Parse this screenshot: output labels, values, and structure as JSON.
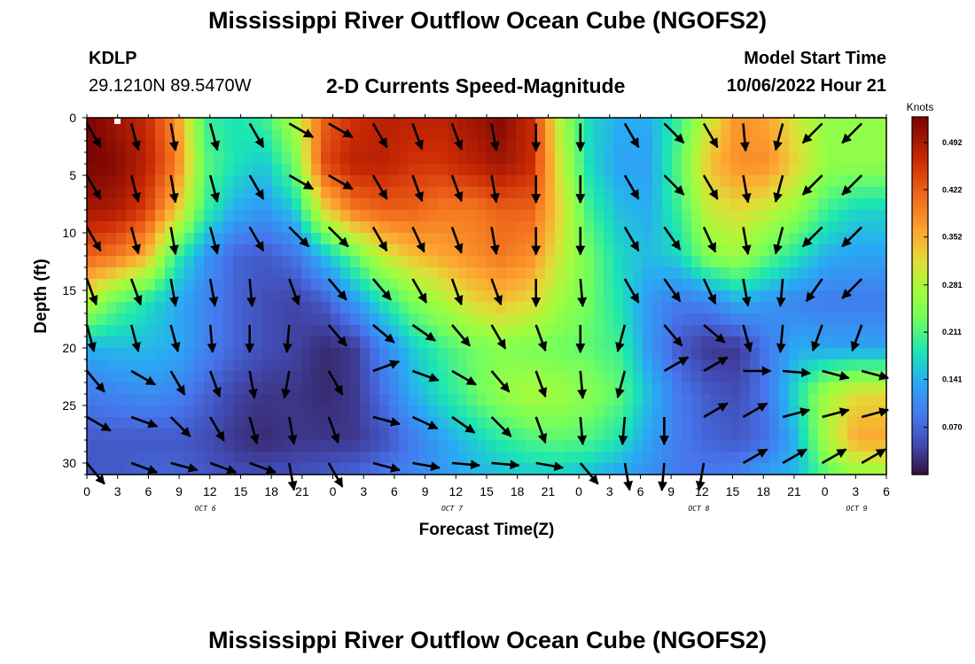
{
  "header": {
    "title_top": "Mississippi River Outflow Ocean Cube (NGOFS2)",
    "title_bottom": "Mississippi River Outflow Ocean Cube (NGOFS2)",
    "station_id": "KDLP",
    "station_coords": "29.1210N  89.5470W",
    "subtitle": "2-D Currents Speed-Magnitude",
    "model_label": "Model Start Time",
    "model_date": "10/06/2022 Hour 21"
  },
  "colors": {
    "arrow": "#000000",
    "axis": "#000000",
    "background": "#ffffff"
  },
  "chart_data": {
    "type": "heatmap",
    "title": "2-D Currents Speed-Magnitude",
    "xlabel": "Forecast Time(Z)",
    "ylabel": "Depth (ft)",
    "x_hours_range": [
      0,
      81
    ],
    "ylim": [
      0,
      31
    ],
    "y_inverted": true,
    "x_tick_labels": [
      "0",
      "3",
      "6",
      "9",
      "12",
      "15",
      "18",
      "21",
      "0",
      "3",
      "6",
      "9",
      "12",
      "15",
      "18",
      "21",
      "0",
      "3",
      "6",
      "9",
      "12",
      "15",
      "18",
      "21",
      "0",
      "3",
      "6"
    ],
    "y_ticks": [
      0,
      5,
      10,
      15,
      20,
      25,
      30
    ],
    "day_labels": [
      {
        "label": "OCT 6",
        "hour": 12
      },
      {
        "label": "OCT 7",
        "hour": 37
      },
      {
        "label": "OCT 8",
        "hour": 62
      },
      {
        "label": "OCT 9",
        "hour": 78
      }
    ],
    "colorbar": {
      "unit": "Knots",
      "range": [
        0.0,
        0.53
      ],
      "ticks": [
        0.07,
        0.141,
        0.211,
        0.281,
        0.352,
        0.422,
        0.492
      ],
      "tick_labels": [
        "0.070",
        "0.141",
        "0.211",
        "0.281",
        "0.352",
        "0.422",
        "0.492"
      ]
    },
    "grid_hours": [
      0,
      3,
      6,
      9,
      12,
      15,
      18,
      21,
      24,
      27,
      30,
      33,
      36,
      39,
      42,
      45,
      48,
      51,
      54,
      57,
      60,
      63,
      66,
      69,
      72,
      75,
      78,
      81
    ],
    "grid_depths": [
      0,
      4,
      8,
      12,
      16,
      20,
      24,
      28,
      31
    ],
    "speed_knots": [
      [
        0.53,
        0.5,
        0.47,
        0.38,
        0.2,
        0.18,
        0.2,
        0.28,
        0.42,
        0.46,
        0.48,
        0.48,
        0.48,
        0.5,
        0.52,
        0.47,
        0.28,
        0.17,
        0.14,
        0.14,
        0.2,
        0.3,
        0.38,
        0.36,
        0.3,
        0.26,
        0.26,
        0.26
      ],
      [
        0.53,
        0.52,
        0.48,
        0.4,
        0.22,
        0.18,
        0.16,
        0.23,
        0.44,
        0.48,
        0.48,
        0.46,
        0.46,
        0.48,
        0.5,
        0.47,
        0.3,
        0.17,
        0.13,
        0.13,
        0.22,
        0.34,
        0.38,
        0.38,
        0.32,
        0.26,
        0.26,
        0.26
      ],
      [
        0.5,
        0.49,
        0.45,
        0.34,
        0.2,
        0.14,
        0.12,
        0.16,
        0.32,
        0.4,
        0.42,
        0.42,
        0.4,
        0.4,
        0.42,
        0.42,
        0.32,
        0.2,
        0.15,
        0.14,
        0.2,
        0.3,
        0.32,
        0.3,
        0.26,
        0.2,
        0.17,
        0.17
      ],
      [
        0.42,
        0.4,
        0.35,
        0.2,
        0.12,
        0.07,
        0.06,
        0.08,
        0.15,
        0.22,
        0.3,
        0.34,
        0.36,
        0.38,
        0.4,
        0.38,
        0.3,
        0.23,
        0.17,
        0.15,
        0.17,
        0.25,
        0.27,
        0.22,
        0.18,
        0.14,
        0.13,
        0.13
      ],
      [
        0.29,
        0.22,
        0.18,
        0.14,
        0.1,
        0.07,
        0.05,
        0.04,
        0.06,
        0.12,
        0.18,
        0.24,
        0.28,
        0.32,
        0.34,
        0.32,
        0.27,
        0.23,
        0.18,
        0.12,
        0.09,
        0.1,
        0.14,
        0.12,
        0.1,
        0.09,
        0.09,
        0.09
      ],
      [
        0.14,
        0.15,
        0.15,
        0.14,
        0.1,
        0.07,
        0.05,
        0.04,
        0.02,
        0.03,
        0.1,
        0.16,
        0.2,
        0.23,
        0.25,
        0.24,
        0.23,
        0.22,
        0.2,
        0.12,
        0.06,
        0.03,
        0.03,
        0.09,
        0.14,
        0.13,
        0.13,
        0.13
      ],
      [
        0.09,
        0.1,
        0.11,
        0.1,
        0.07,
        0.04,
        0.03,
        0.03,
        0.02,
        0.03,
        0.08,
        0.14,
        0.18,
        0.22,
        0.26,
        0.28,
        0.27,
        0.25,
        0.22,
        0.15,
        0.09,
        0.06,
        0.05,
        0.09,
        0.18,
        0.28,
        0.32,
        0.32
      ],
      [
        0.06,
        0.06,
        0.06,
        0.06,
        0.05,
        0.03,
        0.02,
        0.03,
        0.03,
        0.03,
        0.05,
        0.09,
        0.13,
        0.16,
        0.19,
        0.21,
        0.22,
        0.21,
        0.18,
        0.13,
        0.09,
        0.07,
        0.06,
        0.08,
        0.15,
        0.28,
        0.36,
        0.36
      ],
      [
        0.06,
        0.06,
        0.07,
        0.07,
        0.06,
        0.05,
        0.05,
        0.05,
        0.06,
        0.07,
        0.09,
        0.1,
        0.12,
        0.14,
        0.15,
        0.16,
        0.16,
        0.15,
        0.13,
        0.11,
        0.09,
        0.09,
        0.1,
        0.13,
        0.15,
        0.22,
        0.26,
        0.26
      ]
    ],
    "vector_hours": [
      0,
      4.5,
      8.5,
      12.5,
      16.5,
      20.5,
      24.5,
      29,
      33,
      37,
      41,
      45.5,
      50,
      54.5,
      58.5,
      62.5,
      66.5,
      70.5,
      74.5,
      78.5
    ],
    "vector_depths": [
      0.5,
      5,
      9.5,
      14,
      18,
      22,
      26,
      30
    ],
    "vector_direction_deg": [
      [
        150,
        165,
        170,
        165,
        150,
        120,
        120,
        150,
        160,
        160,
        170,
        180,
        180,
        150,
        135,
        150,
        175,
        195,
        225,
        225
      ],
      [
        150,
        165,
        170,
        165,
        150,
        120,
        120,
        150,
        160,
        160,
        170,
        180,
        180,
        150,
        135,
        150,
        170,
        195,
        225,
        225
      ],
      [
        150,
        165,
        170,
        165,
        150,
        135,
        135,
        150,
        155,
        160,
        170,
        180,
        180,
        150,
        145,
        155,
        170,
        195,
        225,
        225
      ],
      [
        160,
        160,
        170,
        170,
        175,
        160,
        140,
        140,
        150,
        160,
        160,
        180,
        175,
        150,
        145,
        155,
        170,
        185,
        215,
        225
      ],
      [
        165,
        165,
        165,
        175,
        180,
        185,
        140,
        130,
        125,
        140,
        150,
        160,
        180,
        195,
        140,
        130,
        165,
        185,
        200,
        200
      ],
      [
        140,
        120,
        150,
        160,
        170,
        190,
        150,
        70,
        110,
        120,
        140,
        160,
        175,
        195,
        60,
        60,
        90,
        95,
        105,
        105
      ],
      [
        120,
        110,
        135,
        150,
        165,
        170,
        160,
        105,
        115,
        125,
        135,
        160,
        175,
        185,
        180,
        60,
        60,
        75,
        75,
        75
      ],
      [
        140,
        110,
        105,
        110,
        110,
        170,
        150,
        105,
        100,
        95,
        95,
        100,
        140,
        170,
        185,
        190,
        60,
        60,
        60,
        60
      ]
    ]
  }
}
